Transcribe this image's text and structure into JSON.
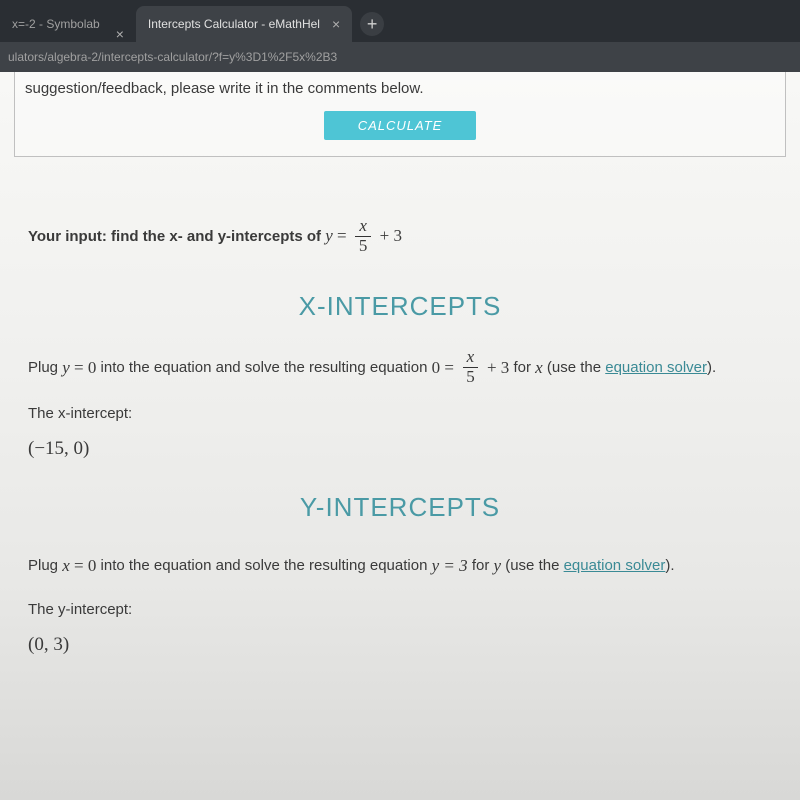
{
  "browser": {
    "tabs": [
      {
        "title": "x=-2 - Symbolab",
        "active": false
      },
      {
        "title": "Intercepts Calculator - eMathHel",
        "active": true
      }
    ],
    "url": "ulators/algebra-2/intercepts-calculator/?f=y%3D1%2F5x%2B3"
  },
  "topbox": {
    "suggestion": "suggestion/feedback, please write it in the comments below.",
    "calculate": "CALCULATE"
  },
  "content": {
    "input_prefix": "Your input: find the x- and y-intercepts of",
    "eq_lhs_var": "y",
    "eq_frac_num": "x",
    "eq_frac_den": "5",
    "eq_plus": "+ 3",
    "x_section": "X-INTERCEPTS",
    "x_plug_a": "Plug",
    "x_plug_eq_var": "y",
    "x_plug_eq_rhs": "= 0",
    "x_plug_b": "into the equation and solve the resulting equation",
    "x_eq0": "0 =",
    "x_for": "for",
    "x_var": "x",
    "x_use": "(use the",
    "link_eq_solver": "equation solver",
    "x_close": ").",
    "x_label": "The x-intercept:",
    "x_result": "(−15, 0)",
    "y_section": "Y-INTERCEPTS",
    "y_plug_a": "Plug",
    "y_plug_eq_var": "x",
    "y_plug_eq_rhs": "= 0",
    "y_plug_b": "into the equation and solve the resulting equation",
    "y_eq": "y = 3",
    "y_for": "for",
    "y_var": "y",
    "y_use": "(use the",
    "y_close": ").",
    "y_label": "The y-intercept:",
    "y_result": "(0, 3)"
  },
  "colors": {
    "accent": "#4a9aa5",
    "button": "#4ec5d5",
    "chrome_dark": "#2a2e33",
    "chrome_active": "#3e4247"
  }
}
